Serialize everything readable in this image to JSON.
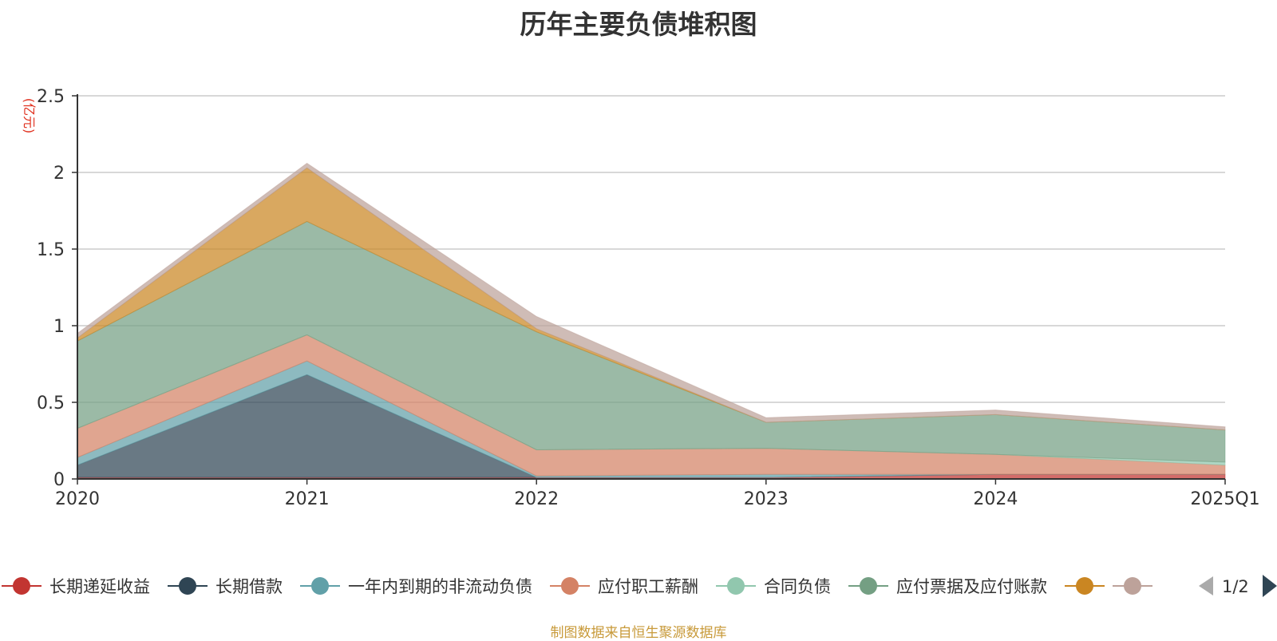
{
  "chart_data": {
    "type": "area",
    "stacked": true,
    "title": "历年主要负债堆积图",
    "ylabel": "(亿元)",
    "xlabel": "",
    "categories": [
      "2020",
      "2021",
      "2022",
      "2023",
      "2024",
      "2025Q1"
    ],
    "ylim": [
      0,
      2.5
    ],
    "yticks": [
      "0",
      "0.5",
      "1",
      "1.5",
      "2",
      "2.5"
    ],
    "grid": true,
    "legend_position": "bottom",
    "legend_page": "1/2",
    "series": [
      {
        "name": "长期递延收益",
        "color": "#c23531",
        "values": [
          0.01,
          0.01,
          0.01,
          0.01,
          0.03,
          0.03
        ]
      },
      {
        "name": "长期借款",
        "color": "#2f4554",
        "values": [
          0.08,
          0.67,
          0.0,
          0.0,
          0.0,
          0.0
        ]
      },
      {
        "name": "一年内到期的非流动负债",
        "color": "#61a0a8",
        "values": [
          0.05,
          0.09,
          0.01,
          0.02,
          0.0,
          0.0
        ]
      },
      {
        "name": "应付职工薪酬",
        "color": "#d48265",
        "values": [
          0.19,
          0.17,
          0.17,
          0.17,
          0.13,
          0.06
        ]
      },
      {
        "name": "合同负债",
        "color": "#91c7ae",
        "values": [
          0.0,
          0.0,
          0.0,
          0.0,
          0.0,
          0.02
        ]
      },
      {
        "name": "应付票据及应付账款",
        "color": "#749f83",
        "values": [
          0.57,
          0.74,
          0.77,
          0.17,
          0.26,
          0.21
        ]
      },
      {
        "name": "",
        "color": "#ca8622",
        "values": [
          0.02,
          0.35,
          0.02,
          0.0,
          0.0,
          0.0
        ]
      },
      {
        "name": "",
        "color": "#bda29a",
        "values": [
          0.03,
          0.03,
          0.08,
          0.03,
          0.03,
          0.02
        ]
      }
    ]
  },
  "source_note": "制图数据来自恒生聚源数据库"
}
